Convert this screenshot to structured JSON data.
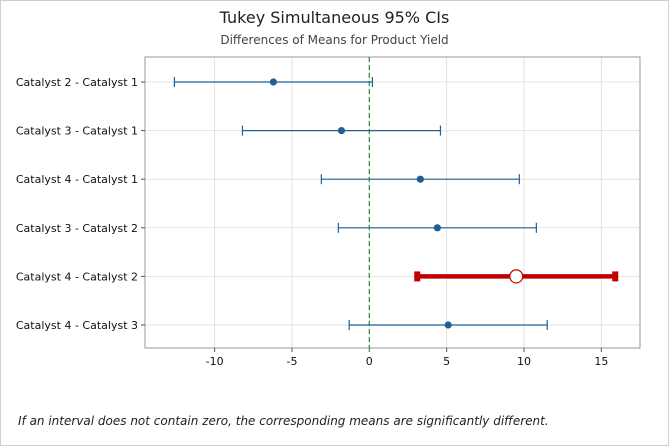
{
  "title": "Tukey Simultaneous 95% CIs",
  "subtitle": "Differences of Means for Product Yield",
  "footnote": "If an interval does not contain zero, the corresponding means are significantly different.",
  "colors": {
    "interval": "#1f5f96",
    "significant": "#c00000",
    "reference_line": "#2e8b3a",
    "grid": "#e3e3e3"
  },
  "chart_data": {
    "type": "interval",
    "xlim": [
      -14.5,
      17.5
    ],
    "xticks": [
      -10,
      -5,
      0,
      5,
      10,
      15
    ],
    "reference_x": 0,
    "grid": true,
    "intervals": [
      {
        "label": "Catalyst 2 - Catalyst 1",
        "estimate": -6.2,
        "lower": -12.6,
        "upper": 0.2,
        "significant": false
      },
      {
        "label": "Catalyst 3 - Catalyst 1",
        "estimate": -1.8,
        "lower": -8.2,
        "upper": 4.6,
        "significant": false
      },
      {
        "label": "Catalyst 4 - Catalyst 1",
        "estimate": 3.3,
        "lower": -3.1,
        "upper": 9.7,
        "significant": false
      },
      {
        "label": "Catalyst 3 - Catalyst 2",
        "estimate": 4.4,
        "lower": -2.0,
        "upper": 10.8,
        "significant": false
      },
      {
        "label": "Catalyst 4 - Catalyst 2",
        "estimate": 9.5,
        "lower": 3.1,
        "upper": 15.9,
        "significant": true
      },
      {
        "label": "Catalyst 4 - Catalyst 3",
        "estimate": 5.1,
        "lower": -1.3,
        "upper": 11.5,
        "significant": false
      }
    ]
  }
}
